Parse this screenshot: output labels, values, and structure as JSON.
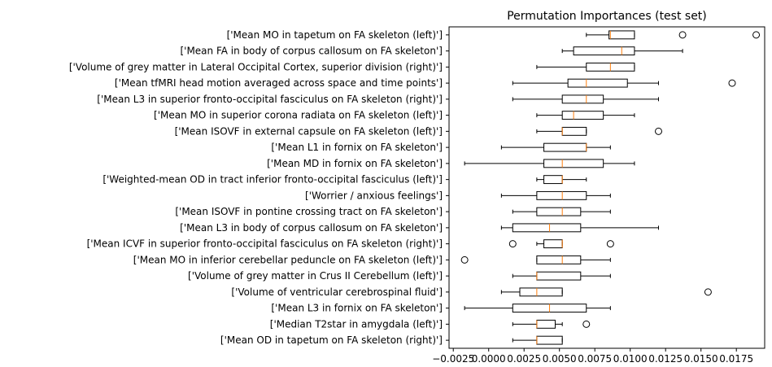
{
  "chart_data": {
    "type": "box",
    "orientation": "horizontal",
    "title": "Permutation Importances (test set)",
    "xlabel": "",
    "ylabel": "",
    "xlim": [
      -0.0028,
      0.0195
    ],
    "xticks": [
      -0.0025,
      0.0,
      0.0025,
      0.005,
      0.0075,
      0.01,
      0.0125,
      0.015,
      0.0175
    ],
    "xtick_labels": [
      "−0.0025",
      "0.0000",
      "0.0025",
      "0.0050",
      "0.0075",
      "0.0100",
      "0.0125",
      "0.0150",
      "0.0175"
    ],
    "grid": false,
    "colors": {
      "box": "#000000",
      "median": "#ff7f0e",
      "outlier": "#000000"
    },
    "series": [
      {
        "label": "['Mean MO in tapetum on FA skeleton (left)']",
        "whisker_low": 0.0069,
        "q1": 0.0085,
        "median": 0.0086,
        "q3": 0.0103,
        "whisker_high": 0.0103,
        "outliers": [
          0.0137,
          0.0189
        ]
      },
      {
        "label": "['Mean FA in body of corpus callosum on FA skeleton']",
        "whisker_low": 0.0052,
        "q1": 0.006,
        "median": 0.0094,
        "q3": 0.0103,
        "whisker_high": 0.0137,
        "outliers": []
      },
      {
        "label": "['Volume of grey matter in Lateral Occipital Cortex, superior division (right)']",
        "whisker_low": 0.0034,
        "q1": 0.0069,
        "median": 0.0086,
        "q3": 0.0103,
        "whisker_high": 0.0103,
        "outliers": []
      },
      {
        "label": "['Mean tfMRI head motion averaged across space and time points']",
        "whisker_low": 0.0017,
        "q1": 0.0056,
        "median": 0.0069,
        "q3": 0.0098,
        "whisker_high": 0.012,
        "outliers": [
          0.0172
        ]
      },
      {
        "label": "['Mean L3 in superior fronto-occipital fasciculus on FA skeleton (right)']",
        "whisker_low": 0.0017,
        "q1": 0.0052,
        "median": 0.0069,
        "q3": 0.0081,
        "whisker_high": 0.012,
        "outliers": []
      },
      {
        "label": "['Mean MO in superior corona radiata on FA skeleton (left)']",
        "whisker_low": 0.0034,
        "q1": 0.0052,
        "median": 0.006,
        "q3": 0.0081,
        "whisker_high": 0.0103,
        "outliers": []
      },
      {
        "label": "['Mean ISOVF in external capsule on FA skeleton (left)']",
        "whisker_low": 0.0034,
        "q1": 0.0052,
        "median": 0.0052,
        "q3": 0.0069,
        "whisker_high": 0.0069,
        "outliers": [
          0.012
        ]
      },
      {
        "label": "['Mean L1 in fornix on FA skeleton']",
        "whisker_low": 0.0009,
        "q1": 0.0039,
        "median": 0.0069,
        "q3": 0.0069,
        "whisker_high": 0.0086,
        "outliers": []
      },
      {
        "label": "['Mean MD in fornix on FA skeleton']",
        "whisker_low": -0.0017,
        "q1": 0.0039,
        "median": 0.0052,
        "q3": 0.0081,
        "whisker_high": 0.0103,
        "outliers": []
      },
      {
        "label": "['Weighted-mean OD in tract inferior fronto-occipital fasciculus (left)']",
        "whisker_low": 0.0034,
        "q1": 0.0039,
        "median": 0.0052,
        "q3": 0.0052,
        "whisker_high": 0.0069,
        "outliers": []
      },
      {
        "label": "['Worrier / anxious feelings']",
        "whisker_low": 0.0009,
        "q1": 0.0034,
        "median": 0.0052,
        "q3": 0.0069,
        "whisker_high": 0.0086,
        "outliers": []
      },
      {
        "label": "['Mean ISOVF in pontine crossing tract on FA skeleton']",
        "whisker_low": 0.0017,
        "q1": 0.0034,
        "median": 0.0052,
        "q3": 0.0065,
        "whisker_high": 0.0086,
        "outliers": []
      },
      {
        "label": "['Mean L3 in body of corpus callosum on FA skeleton']",
        "whisker_low": 0.0009,
        "q1": 0.0017,
        "median": 0.0043,
        "q3": 0.0065,
        "whisker_high": 0.012,
        "outliers": []
      },
      {
        "label": "['Mean ICVF in superior fronto-occipital fasciculus on FA skeleton (right)']",
        "whisker_low": 0.0034,
        "q1": 0.0039,
        "median": 0.0052,
        "q3": 0.0052,
        "whisker_high": 0.0052,
        "outliers": [
          0.0017,
          0.0086
        ]
      },
      {
        "label": "['Mean MO in inferior cerebellar peduncle on FA skeleton (left)']",
        "whisker_low": 0.0034,
        "q1": 0.0034,
        "median": 0.0052,
        "q3": 0.0065,
        "whisker_high": 0.0086,
        "outliers": [
          -0.0017
        ]
      },
      {
        "label": "['Volume of grey matter in Crus II Cerebellum (left)']",
        "whisker_low": 0.0017,
        "q1": 0.0034,
        "median": 0.0034,
        "q3": 0.0065,
        "whisker_high": 0.0086,
        "outliers": []
      },
      {
        "label": "['Volume of ventricular cerebrospinal fluid']",
        "whisker_low": 0.0009,
        "q1": 0.0022,
        "median": 0.0034,
        "q3": 0.0052,
        "whisker_high": 0.0052,
        "outliers": [
          0.0155
        ]
      },
      {
        "label": "['Mean L3 in fornix on FA skeleton']",
        "whisker_low": -0.0017,
        "q1": 0.0017,
        "median": 0.0043,
        "q3": 0.0069,
        "whisker_high": 0.0086,
        "outliers": []
      },
      {
        "label": "['Median T2star in amygdala (left)']",
        "whisker_low": 0.0017,
        "q1": 0.0034,
        "median": 0.0034,
        "q3": 0.0047,
        "whisker_high": 0.0052,
        "outliers": [
          0.0069
        ]
      },
      {
        "label": "['Mean OD in tapetum on FA skeleton (right)']",
        "whisker_low": 0.0017,
        "q1": 0.0034,
        "median": 0.0034,
        "q3": 0.0052,
        "whisker_high": 0.0052,
        "outliers": []
      }
    ]
  }
}
